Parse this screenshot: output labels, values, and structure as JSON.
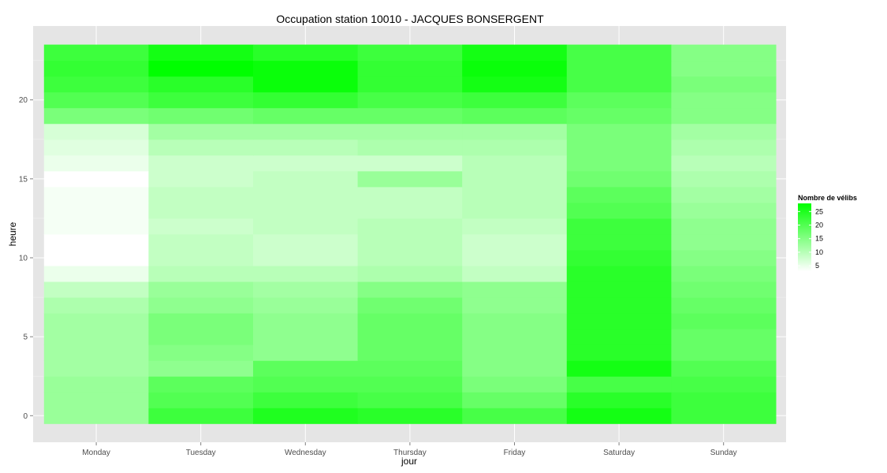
{
  "chart_data": {
    "type": "heatmap",
    "title": "Occupation station 10010 - JACQUES BONSERGENT",
    "xlabel": "jour",
    "ylabel": "heure",
    "x_categories": [
      "Monday",
      "Tuesday",
      "Wednesday",
      "Thursday",
      "Friday",
      "Saturday",
      "Sunday"
    ],
    "y_values": [
      0,
      1,
      2,
      3,
      4,
      5,
      6,
      7,
      8,
      9,
      10,
      11,
      12,
      13,
      14,
      15,
      16,
      17,
      18,
      19,
      20,
      21,
      22,
      23
    ],
    "y_ticks": [
      0,
      5,
      10,
      15,
      20
    ],
    "ylim": [
      -0.5,
      23.5
    ],
    "values": [
      [
        13,
        22,
        25,
        24,
        21,
        26,
        22
      ],
      [
        13,
        20,
        22,
        21,
        18,
        24,
        22
      ],
      [
        13,
        19,
        20,
        20,
        16,
        21,
        21
      ],
      [
        12,
        14,
        19,
        19,
        15,
        26,
        20
      ],
      [
        12,
        15,
        14,
        18,
        15,
        24,
        18
      ],
      [
        12,
        16,
        14,
        18,
        15,
        24,
        18
      ],
      [
        12,
        16,
        14,
        18,
        15,
        24,
        19
      ],
      [
        11,
        14,
        13,
        17,
        14,
        24,
        18
      ],
      [
        9,
        13,
        12,
        15,
        14,
        24,
        17
      ],
      [
        5,
        10,
        10,
        11,
        9,
        24,
        16
      ],
      [
        3,
        9,
        8,
        10,
        8,
        23,
        15
      ],
      [
        3,
        9,
        8,
        10,
        8,
        22,
        14
      ],
      [
        4,
        8,
        9,
        10,
        9,
        22,
        14
      ],
      [
        4,
        9,
        9,
        9,
        10,
        20,
        13
      ],
      [
        4,
        9,
        9,
        9,
        10,
        19,
        12
      ],
      [
        3,
        8,
        9,
        13,
        10,
        17,
        11
      ],
      [
        5,
        8,
        8,
        8,
        10,
        16,
        10
      ],
      [
        6,
        10,
        10,
        11,
        11,
        16,
        11
      ],
      [
        7,
        12,
        12,
        12,
        12,
        16,
        12
      ],
      [
        16,
        17,
        18,
        18,
        19,
        18,
        15
      ],
      [
        20,
        22,
        23,
        21,
        22,
        19,
        15
      ],
      [
        22,
        24,
        27,
        23,
        26,
        21,
        16
      ],
      [
        23,
        28,
        27,
        23,
        27,
        21,
        15
      ],
      [
        22,
        26,
        24,
        22,
        26,
        21,
        15
      ]
    ],
    "color_scale": {
      "title": "Nombre de vélibs",
      "low_color": "#ffffff",
      "high_color": "#00ff00",
      "min": 3,
      "max": 28,
      "breaks": [
        5,
        10,
        15,
        20,
        25
      ]
    },
    "legend_position": "right",
    "panel_background": "#e5e5e5",
    "grid": true
  }
}
